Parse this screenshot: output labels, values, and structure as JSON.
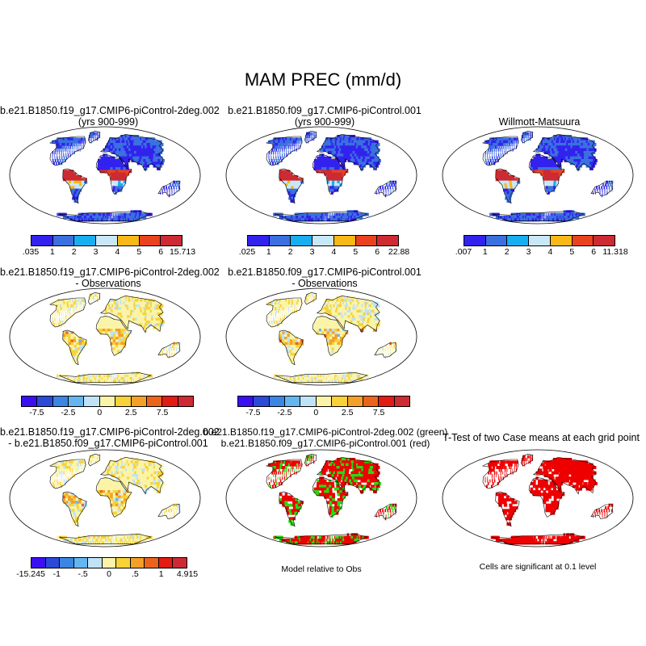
{
  "chart_data": {
    "type": "map-panel-grid",
    "title": "MAM PREC (mm/d)",
    "panels": [
      {
        "title": [
          "b.e21.B1850.f19_g17.CMIP6-piControl-2deg.002",
          "(yrs 900-999)"
        ],
        "kind": "climatology",
        "colorbar": {
          "colors": [
            "#3322ee",
            "#3a70e0",
            "#19aef0",
            "#c8e8f8",
            "#f8b818",
            "#e9421e",
            "#cd2a33"
          ],
          "labels": [
            ".035",
            "1",
            "2",
            "3",
            "4",
            "5",
            "6",
            "15.713"
          ]
        }
      },
      {
        "title": [
          "b.e21.B1850.f09_g17.CMIP6-piControl.001",
          "(yrs 900-999)"
        ],
        "kind": "climatology",
        "colorbar": {
          "colors": [
            "#3322ee",
            "#3a70e0",
            "#19aef0",
            "#c8e8f8",
            "#f8b818",
            "#e9421e",
            "#cd2a33"
          ],
          "labels": [
            ".025",
            "1",
            "2",
            "3",
            "4",
            "5",
            "6",
            "22.88"
          ]
        }
      },
      {
        "title": [
          "Willmott-Matsuura"
        ],
        "kind": "climatology",
        "colorbar": {
          "colors": [
            "#3322ee",
            "#3a70e0",
            "#19aef0",
            "#c8e8f8",
            "#f8b818",
            "#e9421e",
            "#cd2a33"
          ],
          "labels": [
            ".007",
            "1",
            "2",
            "3",
            "4",
            "5",
            "6",
            "11.318"
          ]
        }
      },
      {
        "title": [
          "b.e21.B1850.f19_g17.CMIP6-piControl-2deg.002",
          "- Observations"
        ],
        "kind": "difference",
        "colorbar": {
          "colors": [
            "#3b10f0",
            "#2b4ad8",
            "#3a86e2",
            "#64b6f0",
            "#bfe2f6",
            "#fbf4a8",
            "#f8d238",
            "#f39f28",
            "#eb641c",
            "#e21c12",
            "#cd2a33"
          ],
          "labels": [
            "-7.5",
            "-2.5",
            "0",
            "2.5",
            "7.5"
          ],
          "label_positions": [
            1,
            3,
            5,
            7,
            9
          ]
        }
      },
      {
        "title": [
          "b.e21.B1850.f09_g17.CMIP6-piControl.001",
          "- Observations"
        ],
        "kind": "difference",
        "colorbar": {
          "colors": [
            "#3b10f0",
            "#2b4ad8",
            "#3a86e2",
            "#64b6f0",
            "#bfe2f6",
            "#fbf4a8",
            "#f8d238",
            "#f39f28",
            "#eb641c",
            "#e21c12",
            "#cd2a33"
          ],
          "labels": [
            "-7.5",
            "-2.5",
            "0",
            "2.5",
            "7.5"
          ],
          "label_positions": [
            1,
            3,
            5,
            7,
            9
          ]
        }
      },
      {
        "title": [
          "b.e21.B1850.f19_g17.CMIP6-piControl-2deg.002",
          "- b.e21.B1850.f09_g17.CMIP6-piControl.001"
        ],
        "kind": "case-difference",
        "colorbar": {
          "colors": [
            "#3b10f0",
            "#2b4ad8",
            "#3a86e2",
            "#64b6f0",
            "#bfe2f6",
            "#fbf4a8",
            "#f8d238",
            "#f39f28",
            "#eb641c",
            "#e21c12",
            "#cd2a33"
          ],
          "labels": [
            "-15.245",
            "-1",
            "-.5",
            "0",
            ".5",
            "1",
            "4.915"
          ],
          "label_positions": [
            0,
            2,
            4,
            6,
            8,
            10,
            12
          ]
        }
      },
      {
        "title": [
          "b.e21.B1850.f19_g17.CMIP6-piControl-2deg.002 (green)",
          "b.e21.B1850.f09_g17.CMIP6-piControl.001 (red)"
        ],
        "kind": "relative",
        "note": "Model relative to Obs"
      },
      {
        "title": [
          "T-Test of two Case means at each grid point"
        ],
        "kind": "significance",
        "note": "Cells are significant at 0.1 level"
      }
    ]
  }
}
